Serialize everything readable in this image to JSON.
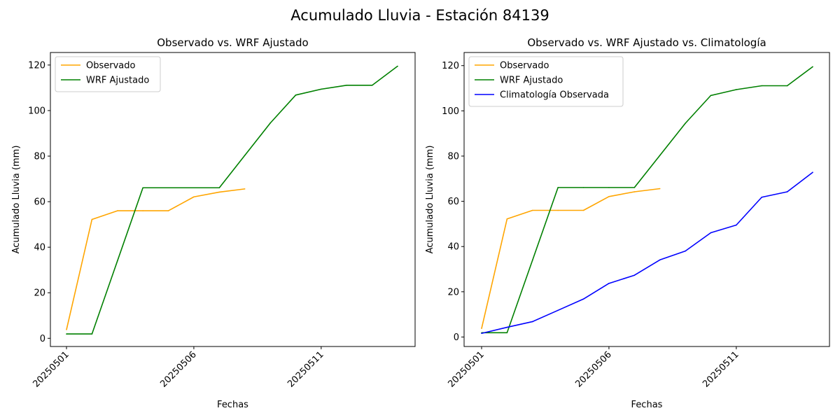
{
  "figure_title": "Acumulado Lluvia - Estación 84139",
  "chart_data": [
    {
      "type": "line",
      "title": "Observado vs. WRF Ajustado",
      "xlabel": "Fechas",
      "ylabel": "Acumulado Lluvia (mm)",
      "x": [
        "20250501",
        "20250502",
        "20250503",
        "20250504",
        "20250505",
        "20250506",
        "20250507",
        "20250508",
        "20250509",
        "20250510",
        "20250511",
        "20250512",
        "20250513",
        "20250514"
      ],
      "xticks": [
        "20250501",
        "20250506",
        "20250511"
      ],
      "yticks": [
        0,
        20,
        40,
        60,
        80,
        100,
        120
      ],
      "ylim": [
        -3.6,
        125.5
      ],
      "grid": false,
      "legend_position": "upper left",
      "series": [
        {
          "name": "Observado",
          "color": "#ffa500",
          "values": [
            3.8,
            52.2,
            56.0,
            56.0,
            56.0,
            62.1,
            64.2,
            65.6,
            null,
            null,
            null,
            null,
            null,
            null
          ]
        },
        {
          "name": "WRF Ajustado",
          "color": "#008000",
          "values": [
            1.9,
            1.9,
            34.0,
            66.1,
            66.1,
            66.1,
            66.1,
            80.3,
            94.5,
            106.8,
            109.4,
            111.1,
            111.1,
            119.5
          ]
        }
      ]
    },
    {
      "type": "line",
      "title": "Observado vs. WRF Ajustado vs. Climatología",
      "xlabel": "Fechas",
      "ylabel": "Acumulado Lluvia (mm)",
      "x": [
        "20250501",
        "20250502",
        "20250503",
        "20250504",
        "20250505",
        "20250506",
        "20250507",
        "20250508",
        "20250509",
        "20250510",
        "20250511",
        "20250512",
        "20250513",
        "20250514"
      ],
      "xticks": [
        "20250501",
        "20250506",
        "20250511"
      ],
      "yticks": [
        0,
        20,
        40,
        60,
        80,
        100,
        120
      ],
      "ylim": [
        -4.2,
        125.8
      ],
      "grid": false,
      "legend_position": "upper left",
      "series": [
        {
          "name": "Observado",
          "color": "#ffa500",
          "values": [
            3.8,
            52.2,
            56.0,
            56.0,
            56.0,
            62.1,
            64.2,
            65.6,
            null,
            null,
            null,
            null,
            null,
            null
          ]
        },
        {
          "name": "WRF Ajustado",
          "color": "#008000",
          "values": [
            1.9,
            1.9,
            34.0,
            66.1,
            66.1,
            66.1,
            66.1,
            80.3,
            94.5,
            106.8,
            109.4,
            111.1,
            111.1,
            119.5
          ]
        },
        {
          "name": "Climatología Observada",
          "color": "#0000ff",
          "values": [
            1.6,
            4.3,
            6.8,
            11.8,
            16.8,
            23.7,
            27.3,
            34.1,
            38.0,
            46.1,
            49.5,
            61.8,
            64.2,
            72.8
          ]
        }
      ]
    }
  ]
}
